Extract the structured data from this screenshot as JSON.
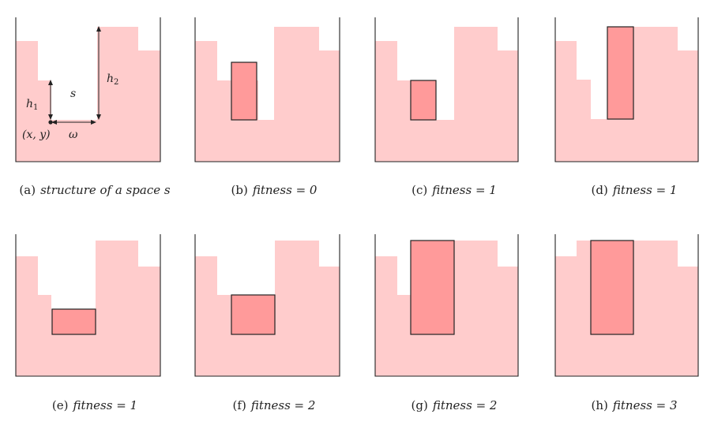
{
  "colors": {
    "stack_fill": "#ffcccc",
    "piece_fill": "#ff9a9a",
    "outline": "#222222"
  },
  "annotations": {
    "h1_main": "h",
    "h1_sub": "1",
    "h2_main": "h",
    "h2_sub": "2",
    "s": "s",
    "omega": "ω",
    "xy": "(x, y)"
  },
  "panels": [
    {
      "label": "(a)",
      "caption": "structure of a space s"
    },
    {
      "label": "(b)",
      "caption": "fitness = 0"
    },
    {
      "label": "(c)",
      "caption": "fitness = 1"
    },
    {
      "label": "(d)",
      "caption": "fitness = 1"
    },
    {
      "label": "(e)",
      "caption": "fitness = 1"
    },
    {
      "label": "(f)",
      "caption": "fitness = 2"
    },
    {
      "label": "(g)",
      "caption": "fitness = 2"
    },
    {
      "label": "(h)",
      "caption": "fitness = 3"
    }
  ]
}
